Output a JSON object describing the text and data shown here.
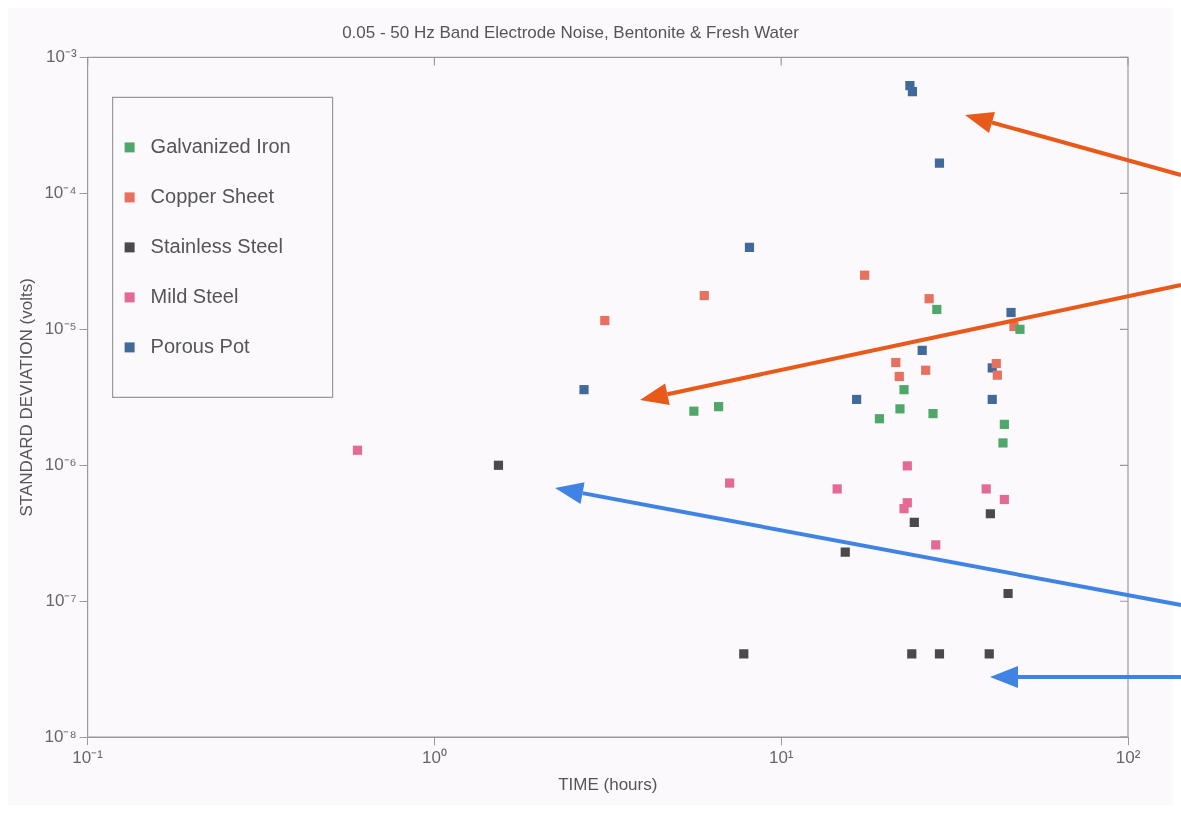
{
  "chart_data": {
    "type": "scatter",
    "title": "0.05 - 50 Hz Band Electrode Noise, Bentonite & Fresh Water",
    "xlabel": "TIME (hours)",
    "ylabel": "STANDARD DEVIATION (volts)",
    "log": "xy",
    "marker": "square",
    "legend": "top left",
    "grid": false,
    "xlim": [
      0.1,
      100
    ],
    "xticks": [
      {
        "value": 0.1,
        "label": "10⁻¹"
      },
      {
        "value": 1,
        "label": "10⁰"
      },
      {
        "value": 10,
        "label": "10¹"
      },
      {
        "value": 100,
        "label": "10²"
      }
    ],
    "ylim": [
      1e-08,
      0.001
    ],
    "yticks": [
      {
        "value": 1e-08,
        "label": "10⁻⁸"
      },
      {
        "value": 1e-07,
        "label": "10⁻⁷"
      },
      {
        "value": 1e-06,
        "label": "10⁻⁶"
      },
      {
        "value": 1e-05,
        "label": "10⁻⁵"
      },
      {
        "value": 0.0001,
        "label": "10⁻⁴"
      },
      {
        "value": 0.001,
        "label": "10⁻³"
      }
    ],
    "series": [
      {
        "name": "Galvanized Iron",
        "color": "#4fa86a",
        "x": [
          5.6,
          6.6,
          19.2,
          22.0,
          22.6,
          27.4,
          28.1,
          48.8,
          44.0,
          43.6
        ],
        "values": [
          2.5e-06,
          2.7e-06,
          2.2e-06,
          2.6e-06,
          3.6e-06,
          2.4e-06,
          1.4e-05,
          1e-05,
          2e-06,
          1.46e-06
        ]
      },
      {
        "name": "Copper Sheet",
        "color": "#e8705e",
        "x": [
          3.1,
          6.0,
          17.4,
          21.4,
          21.9,
          26.1,
          26.7,
          41.7,
          42.0,
          46.9
        ],
        "values": [
          1.16e-05,
          1.77e-05,
          2.5e-05,
          5.7e-06,
          4.5e-06,
          5e-06,
          1.68e-05,
          5.6e-06,
          4.6e-06,
          1.05e-05
        ]
      },
      {
        "name": "Stainless Steel",
        "color": "#4a4a4c",
        "x": [
          1.53,
          7.8,
          15.3,
          24.2,
          40.1,
          45.1,
          23.8,
          28.6,
          39.8
        ],
        "values": [
          1e-06,
          4.1e-08,
          2.3e-07,
          3.8e-07,
          4.4e-07,
          1.14e-07,
          4.1e-08,
          4.1e-08,
          4.1e-08
        ]
      },
      {
        "name": "Mild Steel",
        "color": "#e46a93",
        "x": [
          0.6,
          7.1,
          14.5,
          23.1,
          23.1,
          22.6,
          27.9,
          39.0,
          44.0
        ],
        "values": [
          1.29e-06,
          7.4e-07,
          6.7e-07,
          9.9e-07,
          5.3e-07,
          4.8e-07,
          2.6e-07,
          6.7e-07,
          5.6e-07
        ]
      },
      {
        "name": "Porous Pot",
        "color": "#41699a",
        "x": [
          23.5,
          23.9,
          28.6,
          8.1,
          46.0,
          25.5,
          16.5,
          40.6,
          40.6,
          2.7
        ],
        "values": [
          0.00062,
          0.00056,
          0.000167,
          4e-05,
          1.33e-05,
          7e-06,
          3.05e-06,
          5.2e-06,
          3.05e-06,
          3.6e-06
        ]
      }
    ]
  }
}
